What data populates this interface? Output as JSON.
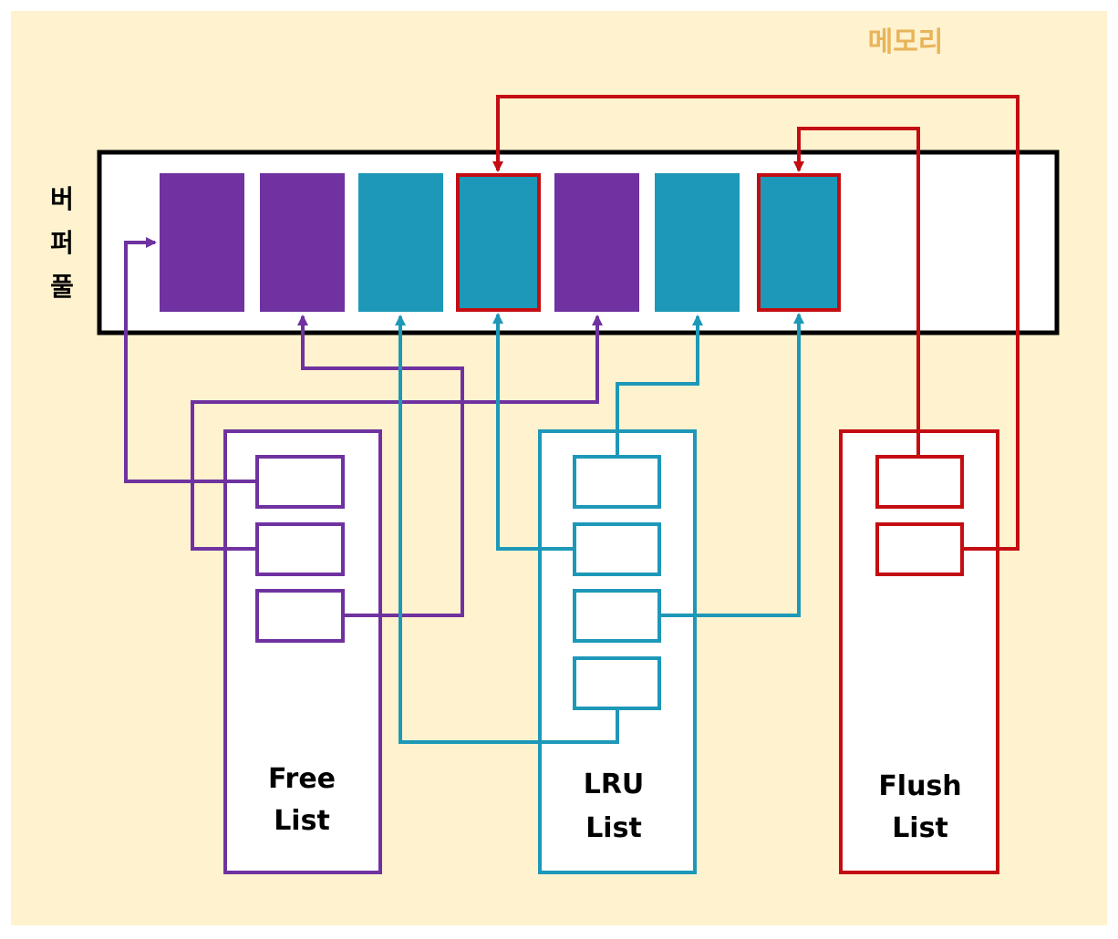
{
  "memory_label": "메모리",
  "buffer_pool_label": [
    "버",
    "퍼",
    "풀"
  ],
  "lists": {
    "free": {
      "line1": "Free",
      "line2": "List"
    },
    "lru": {
      "line1": "LRU",
      "line2": "List"
    },
    "flush": {
      "line1": "Flush",
      "line2": "List"
    }
  },
  "colors": {
    "background": "#fff2cf",
    "memory_label": "#e8b45a",
    "free": "#6f32a0",
    "lru": "#1d98b8",
    "flush": "#c40d12",
    "outline": "#000000"
  }
}
